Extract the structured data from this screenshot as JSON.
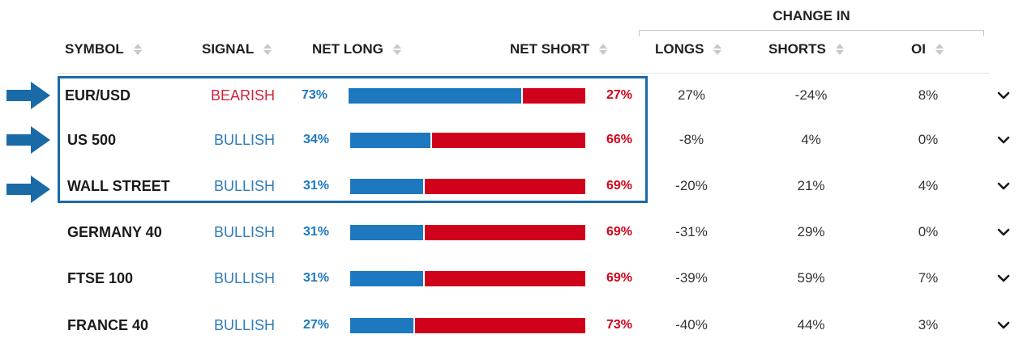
{
  "headers": {
    "change_group": "CHANGE IN",
    "symbol": "SYMBOL",
    "signal": "SIGNAL",
    "net_long": "NET LONG",
    "net_short": "NET SHORT",
    "longs": "LONGS",
    "shorts": "SHORTS",
    "oi": "OI"
  },
  "colors": {
    "long_blue": "#1d78bf",
    "short_red": "#d0021b",
    "bearish_text": "#d0233a",
    "bullish_text": "#2f7bb8",
    "highlight_border": "#1b6aa8",
    "arrow": "#1b6aa8"
  },
  "icons": {
    "sort": "sort-icon",
    "expand": "chevron-down-icon",
    "pointer": "right-arrow-icon"
  },
  "rows": [
    {
      "symbol": "EUR/USD",
      "signal": "BEARISH",
      "net_long": "73%",
      "net_short": "27%",
      "long_fraction": 0.73,
      "longs": "27%",
      "shorts": "-24%",
      "oi": "8%",
      "highlighted": true
    },
    {
      "symbol": "US 500",
      "signal": "BULLISH",
      "net_long": "34%",
      "net_short": "66%",
      "long_fraction": 0.34,
      "longs": "-8%",
      "shorts": "4%",
      "oi": "0%",
      "highlighted": true
    },
    {
      "symbol": "WALL STREET",
      "signal": "BULLISH",
      "net_long": "31%",
      "net_short": "69%",
      "long_fraction": 0.31,
      "longs": "-20%",
      "shorts": "21%",
      "oi": "4%",
      "highlighted": true
    },
    {
      "symbol": "GERMANY 40",
      "signal": "BULLISH",
      "net_long": "31%",
      "net_short": "69%",
      "long_fraction": 0.31,
      "longs": "-31%",
      "shorts": "29%",
      "oi": "0%",
      "highlighted": false
    },
    {
      "symbol": "FTSE 100",
      "signal": "BULLISH",
      "net_long": "31%",
      "net_short": "69%",
      "long_fraction": 0.31,
      "longs": "-39%",
      "shorts": "59%",
      "oi": "7%",
      "highlighted": false
    },
    {
      "symbol": "FRANCE 40",
      "signal": "BULLISH",
      "net_long": "27%",
      "net_short": "73%",
      "long_fraction": 0.27,
      "longs": "-40%",
      "shorts": "44%",
      "oi": "3%",
      "highlighted": false
    }
  ]
}
